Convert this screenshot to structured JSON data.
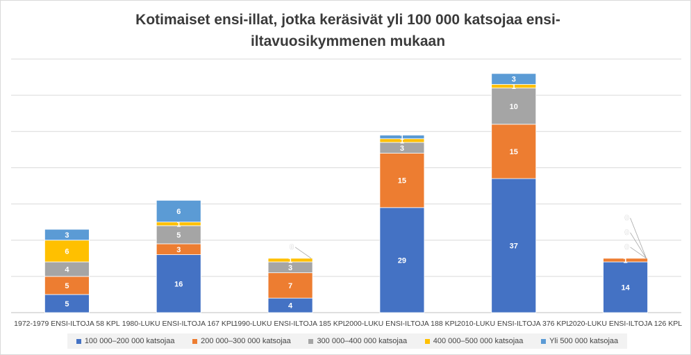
{
  "chart_data": {
    "type": "bar",
    "stacked": true,
    "title": "Kotimaiset ensi-illat, jotka keräsivät yli 100 000 katsojaa ensi-iltavuosikymmenen mukaan",
    "categories": [
      "1972-1979 ENSI-ILTOJA 58 KPL",
      "1980-LUKU ENSI-ILTOJA 167 KPL",
      "1990-LUKU ENSI-ILTOJA 185 KPL",
      "2000-LUKU ENSI-ILTOJA 188 KPL",
      "2010-LUKU ENSI-ILTOJA 376 KPL",
      "2020-LUKU ENSI-ILTOJA 126 KPL"
    ],
    "series": [
      {
        "name": "100 000–200 000 katsojaa",
        "color": "#4472c4",
        "values": [
          5,
          16,
          4,
          29,
          37,
          14
        ]
      },
      {
        "name": "200 000–300 000 katsojaa",
        "color": "#ed7d31",
        "values": [
          5,
          3,
          7,
          15,
          15,
          1
        ]
      },
      {
        "name": "300 000–400 000 katsojaa",
        "color": "#a5a5a5",
        "values": [
          4,
          5,
          3,
          3,
          10,
          0
        ]
      },
      {
        "name": "400 000–500 000 katsojaa",
        "color": "#ffc000",
        "values": [
          6,
          1,
          1,
          1,
          1,
          0
        ]
      },
      {
        "name": "Yli 500 000 katsojaa",
        "color": "#5b9bd5",
        "values": [
          3,
          6,
          0,
          1,
          3,
          0
        ]
      }
    ],
    "ylim": [
      0,
      70
    ],
    "grid": true,
    "legend": "bottom"
  }
}
